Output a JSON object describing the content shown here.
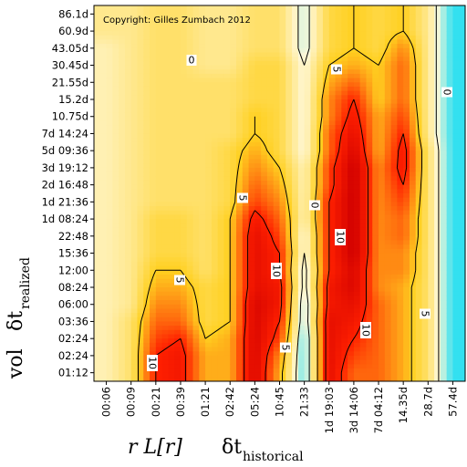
{
  "chart_data": {
    "type": "heatmap",
    "copyright": "Copyright: Gilles Zumbach 2012",
    "x_title": {
      "main": "r L[r]",
      "delta": "δt",
      "subscript": "historical"
    },
    "y_title": {
      "main": "vol",
      "delta": "δt",
      "subscript": "realized"
    },
    "x_ticks": [
      "00:06",
      "00:09",
      "00:21",
      "00:39",
      "01:21",
      "02:42",
      "05:24",
      "10:45",
      "21:33",
      "1d 19:03",
      "3d 14:06",
      "7d 04:12",
      "14.35d",
      "28.7d",
      "57.4d"
    ],
    "y_ticks": [
      "86.1d",
      "60.9d",
      "43.05d",
      "30.45d",
      "21.55d",
      "15.2d",
      "10.75d",
      "7d 14:24",
      "5d 09:36",
      "3d 19:12",
      "2d 16:48",
      "1d 21:36",
      "1d 08:24",
      "22:48",
      "15:36",
      "12:00",
      "08:24",
      "06:00",
      "03:36",
      "02:24",
      "02:24",
      "01:12"
    ],
    "contour_levels": [
      "0",
      "5",
      "10"
    ],
    "contour_labels": [
      {
        "text": "0"
      },
      {
        "text": "0"
      },
      {
        "text": "0"
      },
      {
        "text": "5"
      },
      {
        "text": "5"
      },
      {
        "text": "5"
      },
      {
        "text": "5"
      },
      {
        "text": "5"
      },
      {
        "text": "10"
      },
      {
        "text": "10"
      },
      {
        "text": "10"
      },
      {
        "text": "10"
      }
    ],
    "columns": [
      {
        "x": "00:06",
        "values": [
          2,
          2,
          1,
          1,
          1,
          1,
          1,
          1,
          1,
          1,
          1,
          1,
          1,
          1,
          1,
          1,
          1,
          1,
          1,
          1,
          1,
          1
        ]
      },
      {
        "x": "00:09",
        "values": [
          2,
          2,
          2,
          2,
          2,
          2,
          2,
          2,
          2,
          2,
          2,
          2,
          2,
          2,
          2,
          2,
          2,
          2,
          3,
          3,
          3,
          3
        ]
      },
      {
        "x": "00:21",
        "values": [
          3,
          3,
          3,
          3,
          3,
          3,
          3,
          3,
          3,
          3,
          3,
          3,
          4,
          4,
          4,
          5,
          6,
          7,
          8,
          9,
          10,
          10
        ]
      },
      {
        "x": "00:39",
        "values": [
          3,
          3,
          3,
          3,
          3,
          3,
          3,
          3,
          3,
          3,
          3,
          3,
          4,
          4,
          4,
          5,
          6,
          7,
          8,
          10,
          11,
          11
        ]
      },
      {
        "x": "01:21",
        "values": [
          2,
          2,
          2,
          2,
          3,
          3,
          3,
          3,
          3,
          3,
          3,
          3,
          3,
          3,
          3,
          3,
          4,
          4,
          4,
          5,
          6,
          6
        ]
      },
      {
        "x": "02:42",
        "values": [
          2,
          2,
          2,
          2,
          3,
          3,
          3,
          3,
          4,
          4,
          4,
          4,
          5,
          5,
          5,
          5,
          5,
          5,
          5,
          6,
          6,
          6
        ]
      },
      {
        "x": "05:24",
        "values": [
          3,
          3,
          3,
          4,
          4,
          4,
          5,
          5,
          6,
          7,
          8,
          9,
          11,
          12,
          12,
          12,
          12,
          13,
          13,
          13,
          13,
          13
        ]
      },
      {
        "x": "10:45",
        "values": [
          3,
          3,
          3,
          4,
          4,
          4,
          4,
          4,
          4,
          5,
          6,
          7,
          8,
          9,
          10,
          10,
          11,
          11,
          10,
          9,
          7,
          6
        ]
      },
      {
        "x": "21:33",
        "values": [
          -1,
          -1,
          -1,
          0,
          0,
          0,
          0,
          0,
          0,
          1,
          1,
          1,
          1,
          0,
          0,
          -1,
          -1,
          -2,
          -2,
          -3,
          -3,
          -3
        ]
      },
      {
        "x": "1d 19:03",
        "values": [
          4,
          4,
          4,
          5,
          6,
          7,
          7,
          8,
          8,
          9,
          9,
          10,
          10,
          10,
          10,
          10,
          11,
          11,
          12,
          12,
          12,
          12
        ]
      },
      {
        "x": "3d 14:06",
        "values": [
          5,
          5,
          5,
          6,
          8,
          10,
          11,
          12,
          13,
          14,
          14,
          14,
          14,
          14,
          14,
          13,
          13,
          12,
          11,
          10,
          9,
          8
        ]
      },
      {
        "x": "7d 04:12",
        "values": [
          4,
          4,
          4,
          5,
          5,
          5,
          6,
          6,
          6,
          7,
          7,
          7,
          7,
          7,
          7,
          7,
          7,
          8,
          8,
          8,
          8,
          8
        ]
      },
      {
        "x": "14.35d",
        "values": [
          5,
          5,
          7,
          8,
          8,
          8,
          9,
          10,
          11,
          11,
          10,
          9,
          8,
          8,
          7,
          7,
          6,
          6,
          6,
          6,
          6,
          6
        ]
      },
      {
        "x": "28.7d",
        "values": [
          2,
          2,
          2,
          2,
          2,
          2,
          2,
          2,
          3,
          3,
          3,
          3,
          3,
          3,
          3,
          3,
          3,
          3,
          3,
          3,
          3,
          3
        ]
      },
      {
        "x": "57.4d",
        "values": [
          -4,
          -4,
          -4,
          -4,
          -4,
          -4,
          -4,
          -4,
          -4,
          -4,
          -4,
          -4,
          -4,
          -4,
          -4,
          -4,
          -4,
          -4,
          -4,
          -4,
          -4,
          -4
        ]
      }
    ],
    "colorscale": {
      "low": "#33e0f0",
      "zero": "#fff8d8",
      "mid": "#ffd020",
      "high": "#ff2000",
      "max": "#d00000"
    }
  }
}
